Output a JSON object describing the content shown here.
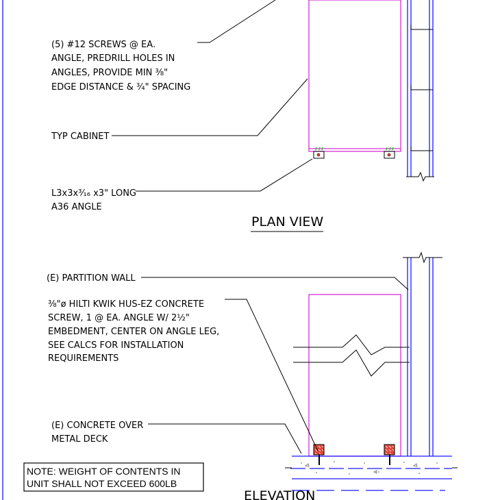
{
  "plan_view": {
    "title": "PLAN VIEW",
    "screws_note": [
      "(5) #12 SCREWS @ EA.",
      "ANGLE, PREDRILL HOLES IN",
      "ANGLES, PROVIDE MIN ⅜\"",
      "EDGE DISTANCE & ¾\" SPACING"
    ],
    "cabinet_label": "TYP CABINET",
    "angle_note": [
      "L3x3x³⁄₁₆ x3\" LONG",
      "A36 ANGLE"
    ]
  },
  "elevation": {
    "title": "ELEVATION",
    "wall_label": "(E) PARTITION WALL",
    "screw_note": [
      "⅜\"ø HILTI KWIK HUS-EZ CONCRETE",
      "SCREW, 1 @ EA. ANGLE W/ 2½\"",
      "EMBEDMENT, CENTER ON ANGLE LEG,",
      "SEE CALCS FOR INSTALLATION",
      "REQUIREMENTS"
    ],
    "deck_note": [
      "(E) CONCRETE OVER",
      "METAL DECK"
    ]
  },
  "weight_note": [
    "NOTE: WEIGHT OF CONTENTS IN",
    "UNIT SHALL NOT EXCEED 600LB"
  ],
  "colors": {
    "linework": "#000000",
    "wall": "#1a1aff",
    "cabinet": "#d62fd6",
    "anchor": "#e0463a",
    "screw_tick": "#2bb02b"
  }
}
